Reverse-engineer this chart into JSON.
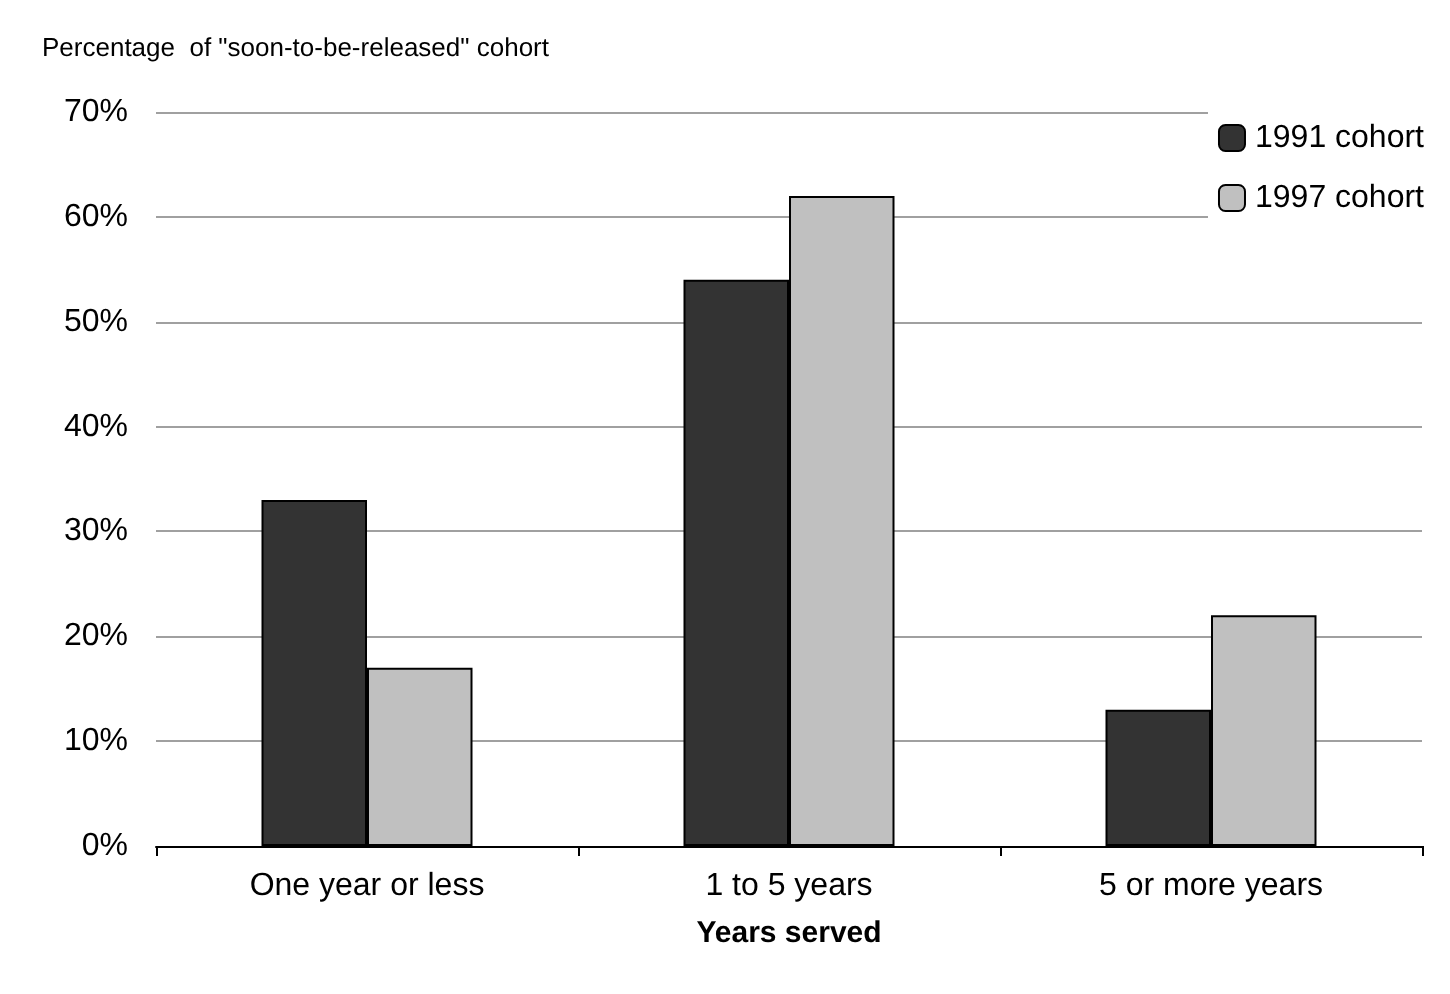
{
  "chart_data": {
    "type": "bar",
    "ylabel": "Percentage  of \"soon-to-be-released\" cohort",
    "xlabel": "Years served",
    "categories": [
      "One year or less",
      "1 to 5 years",
      "5 or more years"
    ],
    "series": [
      {
        "name": "1991 cohort",
        "color": "#333333",
        "values": [
          33,
          54,
          13
        ]
      },
      {
        "name": "1997 cohort",
        "color": "#c0c0c0",
        "values": [
          17,
          62,
          22
        ]
      }
    ],
    "ylim": [
      0,
      70
    ],
    "yticks": [
      {
        "value": 0,
        "label": "0%"
      },
      {
        "value": 10,
        "label": "10%"
      },
      {
        "value": 20,
        "label": "20%"
      },
      {
        "value": 30,
        "label": "30%"
      },
      {
        "value": 40,
        "label": "40%"
      },
      {
        "value": 50,
        "label": "50%"
      },
      {
        "value": 60,
        "label": "60%"
      },
      {
        "value": 70,
        "label": "70%"
      }
    ],
    "grid": "y",
    "legend": "top right"
  }
}
